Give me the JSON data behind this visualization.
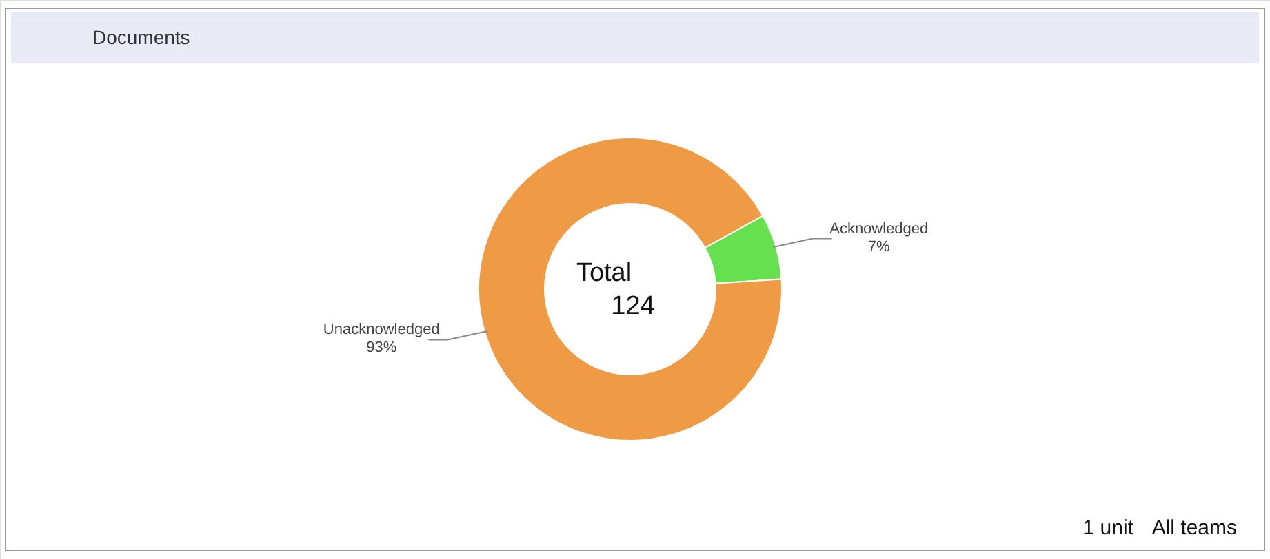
{
  "chart_data": {
    "type": "donut",
    "title": "Documents",
    "categories": [
      "Acknowledged",
      "Unacknowledged"
    ],
    "values": [
      7,
      93
    ],
    "colors": [
      "#66e04e",
      "#ef9a45"
    ],
    "value_labels": [
      "7%",
      "93%"
    ],
    "annotations": [
      "Total",
      "124",
      "1 unit",
      "All teams"
    ]
  }
}
